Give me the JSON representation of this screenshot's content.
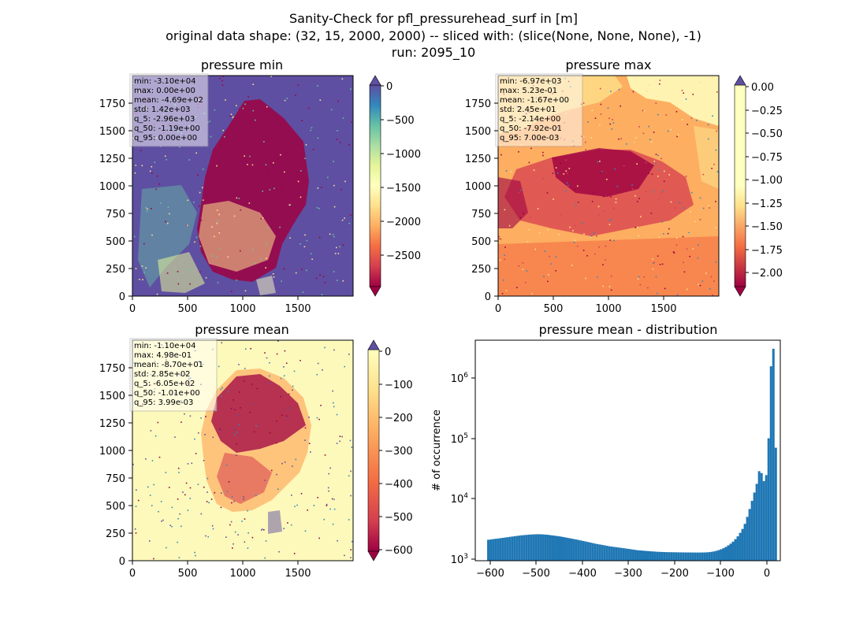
{
  "suptitle": {
    "line1": "Sanity-Check for pfl_pressurehead_surf in [m]",
    "line2": "original data shape: (32, 15, 2000, 2000) -- sliced with: (slice(None, None, None), -1)",
    "line3": "run: 2095_10"
  },
  "chart_data": [
    {
      "type": "heatmap",
      "title": "pressure min",
      "x_ticks": [
        "0",
        "500",
        "1000",
        "1500"
      ],
      "y_ticks": [
        "0",
        "250",
        "500",
        "750",
        "1000",
        "1250",
        "1500",
        "1750"
      ],
      "xlim": [
        0,
        2000
      ],
      "ylim": [
        0,
        2000
      ],
      "colormap": "Spectral",
      "colorbar": {
        "range": [
          -2960,
          0
        ],
        "extend": "both",
        "ticks": [
          "0",
          "−500",
          "−1000",
          "−1500",
          "−2000",
          "−2500"
        ]
      },
      "stats": [
        "min: -3.10e+04",
        "max: 0.00e+00",
        "mean: -4.69e+02",
        "std: 1.42e+03",
        "q_5: -2.96e+03",
        "q_50: -1.19e+00",
        "q_95: 0.00e+00"
      ]
    },
    {
      "type": "heatmap",
      "title": "pressure max",
      "x_ticks": [
        "0",
        "500",
        "1000",
        "1500"
      ],
      "y_ticks": [
        "0",
        "250",
        "500",
        "750",
        "1000",
        "1250",
        "1500",
        "1750"
      ],
      "xlim": [
        0,
        2000
      ],
      "ylim": [
        0,
        2000
      ],
      "colormap": "Spectral",
      "colorbar": {
        "range": [
          -2.14,
          0.007
        ],
        "extend": "both",
        "ticks": [
          "0.00",
          "−0.25",
          "−0.50",
          "−0.75",
          "−1.00",
          "−1.25",
          "−1.50",
          "−1.75",
          "−2.00"
        ]
      },
      "stats": [
        "min: -6.97e+03",
        "max: 5.23e-01",
        "mean: -1.67e+00",
        "std: 2.45e+01",
        "q_5: -2.14e+00",
        "q_50: -7.92e-01",
        "q_95: 7.00e-03"
      ]
    },
    {
      "type": "heatmap",
      "title": "pressure mean",
      "x_ticks": [
        "0",
        "500",
        "1000",
        "1500"
      ],
      "y_ticks": [
        "0",
        "250",
        "500",
        "750",
        "1000",
        "1250",
        "1500",
        "1750"
      ],
      "xlim": [
        0,
        2000
      ],
      "ylim": [
        0,
        2000
      ],
      "colormap": "Spectral",
      "colorbar": {
        "range": [
          -605,
          0.004
        ],
        "extend": "both",
        "ticks": [
          "0",
          "−100",
          "−200",
          "−300",
          "−400",
          "−500",
          "−600"
        ]
      },
      "stats": [
        "min: -1.10e+04",
        "max: 4.98e-01",
        "mean: -8.70e+01",
        "std: 2.85e+02",
        "q_5: -6.05e+02",
        "q_50: -1.01e+00",
        "q_95: 3.99e-03"
      ]
    },
    {
      "type": "bar",
      "title": "pressure mean - distribution",
      "ylabel": "# of occurrence",
      "x_ticks": [
        "−600",
        "−500",
        "−400",
        "−300",
        "−200",
        "−100",
        "0"
      ],
      "y_ticks": [
        "10",
        "10",
        "10",
        "10"
      ],
      "y_tick_exponents": [
        "3",
        "4",
        "5",
        "6"
      ],
      "xlim": [
        -630,
        12
      ],
      "ylim": [
        1000,
        4000000
      ],
      "y_scale": "log",
      "bar_color": "#1f77b4",
      "x": [
        -605,
        -600,
        -595,
        -590,
        -585,
        -580,
        -575,
        -570,
        -565,
        -560,
        -555,
        -550,
        -545,
        -540,
        -535,
        -530,
        -525,
        -520,
        -515,
        -510,
        -505,
        -500,
        -495,
        -490,
        -485,
        -480,
        -475,
        -470,
        -465,
        -460,
        -455,
        -450,
        -445,
        -440,
        -435,
        -430,
        -425,
        -420,
        -415,
        -410,
        -405,
        -400,
        -395,
        -390,
        -385,
        -380,
        -375,
        -370,
        -365,
        -360,
        -355,
        -350,
        -345,
        -340,
        -335,
        -330,
        -325,
        -320,
        -315,
        -310,
        -305,
        -300,
        -295,
        -290,
        -285,
        -280,
        -275,
        -270,
        -265,
        -260,
        -255,
        -250,
        -245,
        -240,
        -235,
        -230,
        -225,
        -220,
        -215,
        -210,
        -205,
        -200,
        -195,
        -190,
        -185,
        -180,
        -175,
        -170,
        -165,
        -160,
        -155,
        -150,
        -145,
        -140,
        -135,
        -130,
        -125,
        -120,
        -115,
        -110,
        -105,
        -100,
        -95,
        -90,
        -85,
        -80,
        -75,
        -70,
        -65,
        -60,
        -55,
        -50,
        -45,
        -40,
        -35,
        -30,
        -25,
        -20,
        -15,
        -10,
        -5,
        0
      ],
      "values": [
        2200,
        2220,
        2250,
        2280,
        2300,
        2330,
        2360,
        2390,
        2420,
        2450,
        2480,
        2510,
        2540,
        2570,
        2600,
        2620,
        2640,
        2660,
        2680,
        2690,
        2700,
        2710,
        2700,
        2690,
        2670,
        2650,
        2620,
        2590,
        2560,
        2530,
        2500,
        2460,
        2420,
        2380,
        2340,
        2300,
        2260,
        2220,
        2180,
        2140,
        2100,
        2060,
        2020,
        1980,
        1940,
        1900,
        1870,
        1840,
        1810,
        1780,
        1750,
        1720,
        1700,
        1680,
        1660,
        1640,
        1620,
        1600,
        1580,
        1560,
        1540,
        1520,
        1500,
        1480,
        1470,
        1460,
        1450,
        1440,
        1430,
        1420,
        1410,
        1400,
        1395,
        1390,
        1385,
        1380,
        1378,
        1376,
        1374,
        1372,
        1370,
        1368,
        1366,
        1365,
        1364,
        1363,
        1362,
        1361,
        1360,
        1360,
        1362,
        1365,
        1370,
        1380,
        1395,
        1420,
        1450,
        1490,
        1540,
        1600,
        1680,
        1780,
        1900,
        2050,
        2250,
        2500,
        2850,
        3300,
        4000,
        5200,
        7000,
        9500,
        13000,
        18000,
        29000,
        27000,
        20000,
        25000,
        100000,
        1500000,
        2900000,
        70000
      ]
    }
  ]
}
